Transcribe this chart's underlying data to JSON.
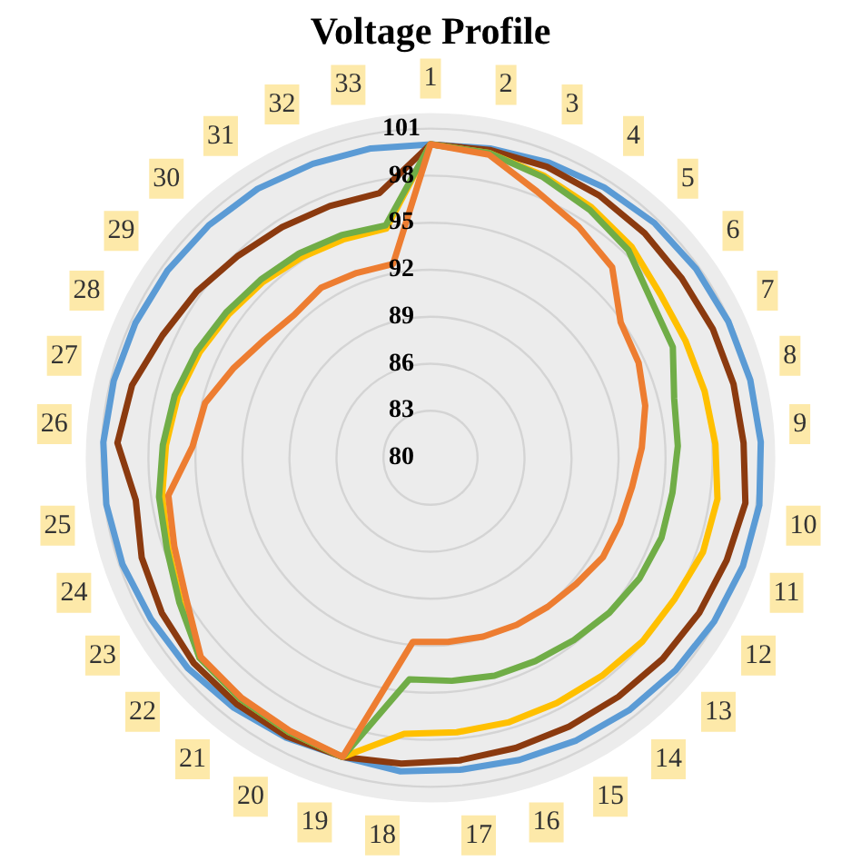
{
  "chart_data": {
    "type": "radar",
    "title": "Voltage Profile",
    "categories": [
      "1",
      "2",
      "3",
      "4",
      "5",
      "6",
      "7",
      "8",
      "9",
      "10",
      "11",
      "12",
      "13",
      "14",
      "15",
      "16",
      "17",
      "18",
      "19",
      "20",
      "21",
      "22",
      "23",
      "24",
      "25",
      "26",
      "27",
      "28",
      "29",
      "30",
      "31",
      "32",
      "33"
    ],
    "ylim": [
      80,
      102
    ],
    "yticks": [
      80,
      83,
      86,
      89,
      92,
      95,
      98,
      101
    ],
    "grid": true,
    "legend": false,
    "marker": "none",
    "line_style": "solid",
    "series": [
      {
        "color": "#5b9bd5",
        "values": [
          100,
          100.1,
          100.3,
          100.5,
          100.7,
          100.8,
          100.9,
          101,
          101.1,
          101.2,
          101.1,
          100.9,
          100.7,
          100.5,
          100.3,
          100.1,
          100,
          100.1,
          99.9,
          100.1,
          100.3,
          100.5,
          100.6,
          100.8,
          100.9,
          100.9,
          100.8,
          100.7,
          100.6,
          100.5,
          100.4,
          100.2,
          100.1
        ]
      },
      {
        "color": "#8b3a0f",
        "values": [
          100,
          100,
          100,
          99.9,
          99.8,
          99.7,
          99.8,
          99.9,
          100,
          100.3,
          100,
          99.8,
          99.6,
          99.4,
          99.3,
          99.3,
          99.4,
          99.6,
          99.9,
          100,
          100,
          100,
          99.8,
          99.5,
          99,
          100,
          99.6,
          98.8,
          98.3,
          97.8,
          97.5,
          97.3,
          97.2
        ]
      },
      {
        "color": "#ffc000",
        "values": [
          100,
          99.8,
          99.4,
          99,
          98.6,
          98,
          97.9,
          98,
          98.2,
          98.5,
          98.4,
          98,
          97.9,
          97.7,
          97.6,
          97.6,
          97.6,
          97.7,
          99.9,
          99.7,
          99.6,
          99.5,
          98.4,
          97.7,
          97.3,
          96.9,
          96.6,
          96.2,
          95.8,
          95.5,
          95.2,
          95,
          94.9
        ]
      },
      {
        "color": "#70ad47",
        "values": [
          100,
          99.8,
          99.3,
          98.8,
          98.3,
          97.3,
          97,
          96,
          95.8,
          95.6,
          95.6,
          95.4,
          95.1,
          94.8,
          94.6,
          94.5,
          94.3,
          94.2,
          99.9,
          99.7,
          99.6,
          99.5,
          98.5,
          97.8,
          97.5,
          97.1,
          96.8,
          96.4,
          96,
          95.7,
          95.5,
          95.3,
          95.1
        ]
      },
      {
        "color": "#ed7d31",
        "values": [
          100,
          99.7,
          98.3,
          97.5,
          96.8,
          94.9,
          94.6,
          94.1,
          93.5,
          93,
          92.8,
          92.7,
          92.3,
          92.1,
          92,
          91.9,
          91.8,
          91.8,
          99.9,
          99.6,
          99.5,
          99.4,
          98,
          97.3,
          96.9,
          95.2,
          94.8,
          93.8,
          93,
          92.6,
          92.9,
          92.7,
          92.6
        ]
      }
    ]
  }
}
